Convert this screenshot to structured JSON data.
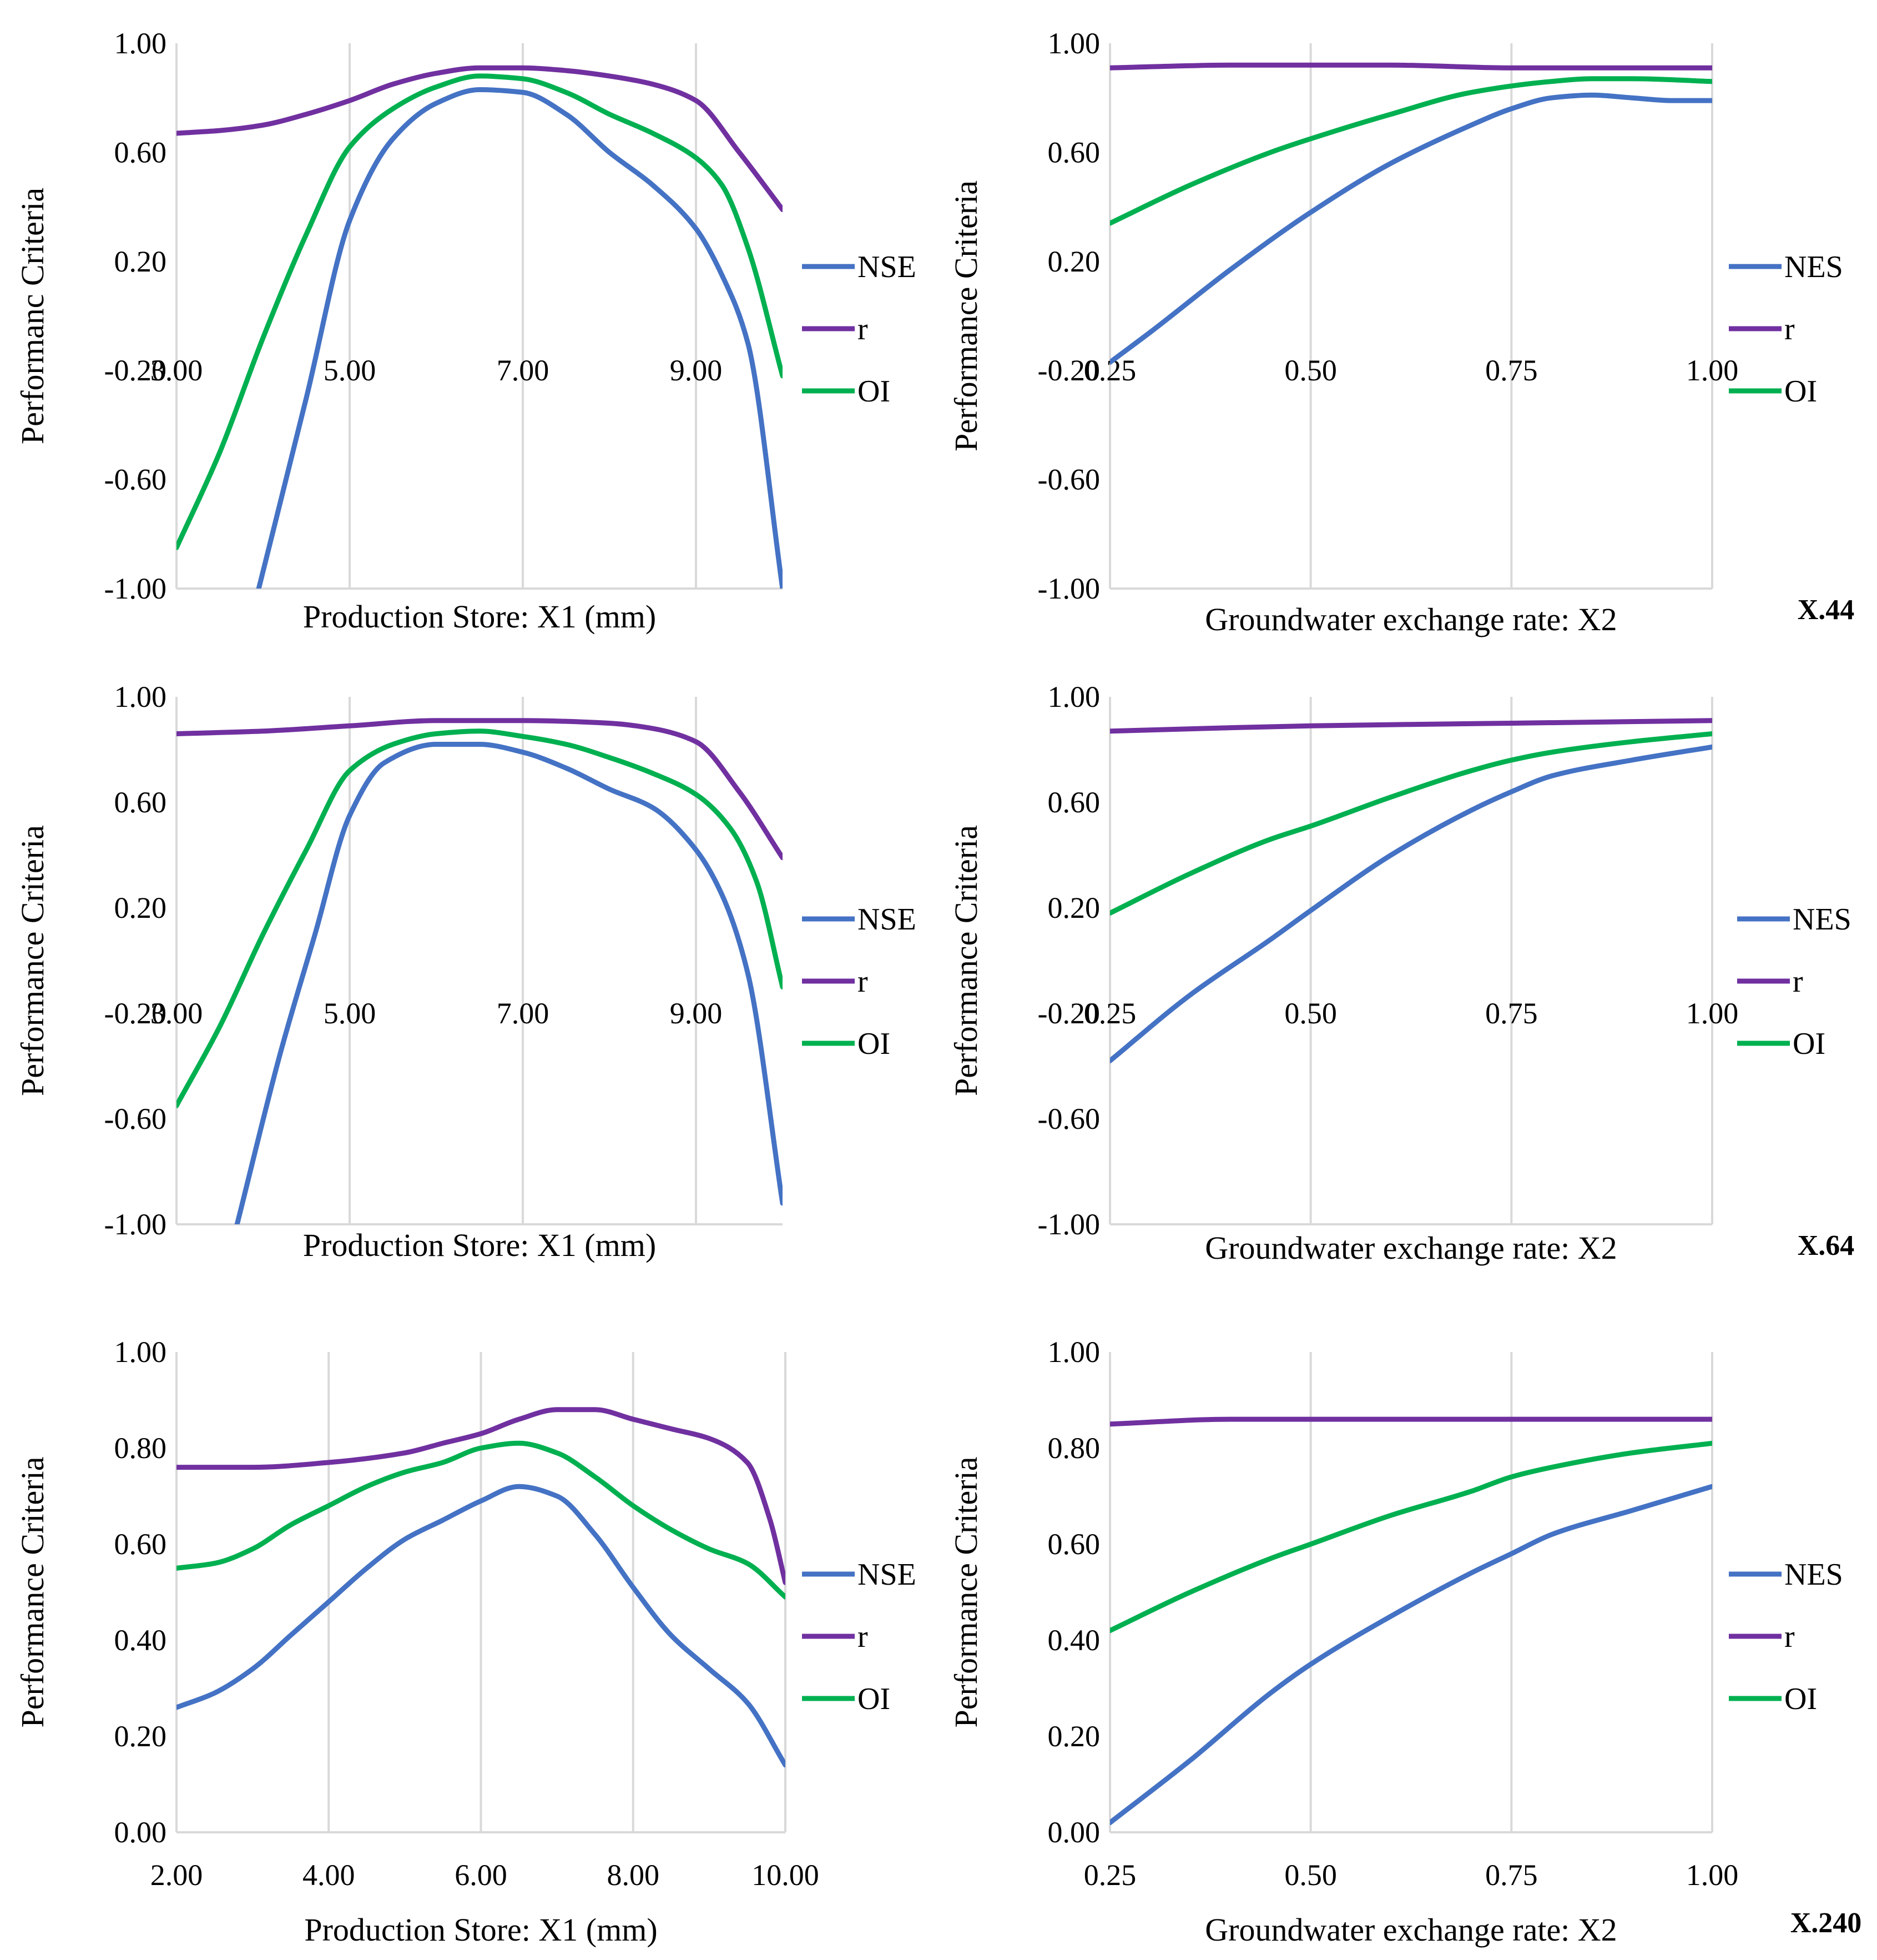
{
  "colors": {
    "NSE": "#4472C4",
    "r": "#7030A0",
    "OI": "#00B050",
    "grid": "#D9D9D9"
  },
  "chart_data": [
    {
      "id": "row1-left",
      "type": "line",
      "xlabel": "Production Store: X1 (mm)",
      "ylabel": "Performanc Criteria",
      "xlim": [
        3,
        10
      ],
      "ylim": [
        -1,
        1
      ],
      "xticks": [
        3,
        5,
        7,
        9
      ],
      "xtick_labels": [
        "3.00",
        "5.00",
        "7.00",
        "9.00"
      ],
      "yticks": [
        1,
        0.6,
        0.2,
        -0.2,
        -0.6,
        -1
      ],
      "ytick_labels": [
        "1.00",
        "0.60",
        "0.20",
        "-0.20",
        "-0.60",
        "-1.00"
      ],
      "xtick_at_y": -0.2,
      "grid": "x",
      "series": [
        {
          "name": "NSE",
          "x": [
            3.95,
            4.5,
            5.0,
            5.5,
            6.0,
            6.5,
            7.0,
            7.5,
            8.0,
            8.5,
            9.0,
            9.3,
            9.6,
            10.0
          ],
          "y": [
            -1.0,
            -0.3,
            0.35,
            0.65,
            0.78,
            0.83,
            0.82,
            0.74,
            0.6,
            0.48,
            0.32,
            0.15,
            -0.1,
            -1.0
          ]
        },
        {
          "name": "r",
          "x": [
            3,
            3.5,
            4,
            4.5,
            5,
            5.5,
            6,
            6.5,
            7,
            7.5,
            8,
            8.5,
            9,
            9.5,
            10
          ],
          "y": [
            0.67,
            0.68,
            0.7,
            0.74,
            0.79,
            0.85,
            0.89,
            0.91,
            0.91,
            0.9,
            0.88,
            0.85,
            0.79,
            0.6,
            0.39
          ]
        },
        {
          "name": "OI",
          "x": [
            3,
            3.5,
            4,
            4.5,
            5,
            5.5,
            6,
            6.5,
            7,
            7.5,
            8,
            8.5,
            9,
            9.3,
            9.6,
            10
          ],
          "y": [
            -0.85,
            -0.5,
            -0.08,
            0.3,
            0.62,
            0.76,
            0.84,
            0.88,
            0.87,
            0.82,
            0.74,
            0.67,
            0.58,
            0.48,
            0.25,
            -0.22
          ]
        }
      ],
      "legend": [
        "NSE",
        "r",
        "OI"
      ],
      "legend_placement": "right"
    },
    {
      "id": "row1-right",
      "type": "line",
      "xlabel": "Groundwater exchange rate: X2",
      "ylabel": "Performance Criteria",
      "xlim": [
        0.25,
        1.0
      ],
      "ylim": [
        -1,
        1
      ],
      "xticks": [
        0.25,
        0.5,
        0.75,
        1.0
      ],
      "xtick_labels": [
        "0.25",
        "0.50",
        "0.75",
        "1.00"
      ],
      "yticks": [
        1,
        0.6,
        0.2,
        -0.2,
        -0.6,
        -1
      ],
      "ytick_labels": [
        "1.00",
        "0.60",
        "0.20",
        "-0.20",
        "-0.60",
        "-1.00"
      ],
      "xtick_at_y": -0.2,
      "grid": "x",
      "series": [
        {
          "name": "NES",
          "x": [
            0.25,
            0.3,
            0.4,
            0.5,
            0.6,
            0.7,
            0.75,
            0.8,
            0.85,
            0.9,
            0.95,
            1.0
          ],
          "y": [
            -0.17,
            -0.06,
            0.17,
            0.38,
            0.56,
            0.7,
            0.76,
            0.8,
            0.81,
            0.8,
            0.79,
            0.79
          ]
        },
        {
          "name": "r",
          "x": [
            0.25,
            0.4,
            0.5,
            0.6,
            0.75,
            0.9,
            1.0
          ],
          "y": [
            0.91,
            0.92,
            0.92,
            0.92,
            0.91,
            0.91,
            0.91
          ]
        },
        {
          "name": "OI",
          "x": [
            0.25,
            0.35,
            0.45,
            0.5,
            0.6,
            0.7,
            0.8,
            0.85,
            0.9,
            1.0
          ],
          "y": [
            0.34,
            0.48,
            0.6,
            0.65,
            0.74,
            0.82,
            0.86,
            0.87,
            0.87,
            0.86
          ]
        }
      ],
      "legend": [
        "NES",
        "r",
        "OI"
      ],
      "legend_placement": "right",
      "tag": "X.44"
    },
    {
      "id": "row2-left",
      "type": "line",
      "xlabel": "Production Store: X1 (mm)",
      "ylabel": "Performance Criteria",
      "xlim": [
        3,
        10
      ],
      "ylim": [
        -1,
        1
      ],
      "xticks": [
        3,
        5,
        7,
        9
      ],
      "xtick_labels": [
        "3.00",
        "5.00",
        "7.00",
        "9.00"
      ],
      "yticks": [
        1,
        0.6,
        0.2,
        -0.2,
        -0.6,
        -1
      ],
      "ytick_labels": [
        "1.00",
        "0.60",
        "0.20",
        "-0.20",
        "-0.60",
        "-1.00"
      ],
      "xtick_at_y": -0.2,
      "grid": "x",
      "series": [
        {
          "name": "NSE",
          "x": [
            3.7,
            4.2,
            4.6,
            5.0,
            5.4,
            6.0,
            6.5,
            7.0,
            7.5,
            8.0,
            8.5,
            9.0,
            9.3,
            9.6,
            10.0
          ],
          "y": [
            -1.0,
            -0.35,
            0.1,
            0.55,
            0.75,
            0.82,
            0.82,
            0.79,
            0.73,
            0.65,
            0.58,
            0.42,
            0.25,
            -0.05,
            -0.92
          ]
        },
        {
          "name": "r",
          "x": [
            3,
            4,
            5,
            6,
            7,
            8,
            8.5,
            9,
            9.5,
            10
          ],
          "y": [
            0.86,
            0.87,
            0.89,
            0.91,
            0.91,
            0.9,
            0.88,
            0.83,
            0.64,
            0.39
          ]
        },
        {
          "name": "OI",
          "x": [
            3,
            3.5,
            4,
            4.5,
            5,
            5.5,
            6,
            6.5,
            7,
            7.5,
            8,
            8.5,
            9,
            9.4,
            9.7,
            10
          ],
          "y": [
            -0.55,
            -0.25,
            0.1,
            0.42,
            0.72,
            0.82,
            0.86,
            0.87,
            0.85,
            0.82,
            0.77,
            0.71,
            0.63,
            0.5,
            0.3,
            -0.1
          ]
        }
      ],
      "legend": [
        "NSE",
        "r",
        "OI"
      ],
      "legend_placement": "right"
    },
    {
      "id": "row2-right",
      "type": "line",
      "xlabel": "Groundwater exchange rate: X2",
      "ylabel": "Performance Criteria",
      "xlim": [
        0.25,
        1.0
      ],
      "ylim": [
        -1,
        1
      ],
      "xticks": [
        0.25,
        0.5,
        0.75,
        1.0
      ],
      "xtick_labels": [
        "0.25",
        "0.50",
        "0.75",
        "1.00"
      ],
      "yticks": [
        1,
        0.6,
        0.2,
        -0.2,
        -0.6,
        -1
      ],
      "ytick_labels": [
        "1.00",
        "0.60",
        "0.20",
        "-0.20",
        "-0.60",
        "-1.00"
      ],
      "xtick_at_y": -0.2,
      "grid": "x",
      "series": [
        {
          "name": "NES",
          "x": [
            0.25,
            0.35,
            0.45,
            0.5,
            0.6,
            0.7,
            0.75,
            0.8,
            0.9,
            1.0
          ],
          "y": [
            -0.38,
            -0.13,
            0.08,
            0.19,
            0.4,
            0.57,
            0.64,
            0.7,
            0.76,
            0.81
          ]
        },
        {
          "name": "r",
          "x": [
            0.25,
            0.5,
            0.75,
            1.0
          ],
          "y": [
            0.87,
            0.89,
            0.9,
            0.91
          ]
        },
        {
          "name": "OI",
          "x": [
            0.25,
            0.35,
            0.45,
            0.5,
            0.6,
            0.7,
            0.75,
            0.8,
            0.9,
            1.0
          ],
          "y": [
            0.18,
            0.33,
            0.46,
            0.51,
            0.62,
            0.72,
            0.76,
            0.79,
            0.83,
            0.86
          ]
        }
      ],
      "legend": [
        "NES",
        "r",
        "OI"
      ],
      "legend_placement": "right",
      "tag": "X.64"
    },
    {
      "id": "row3-left",
      "type": "line",
      "xlabel": "Production Store: X1 (mm)",
      "ylabel": "Performance Criteria",
      "xlim": [
        2,
        10
      ],
      "ylim": [
        0,
        1
      ],
      "xticks": [
        2,
        4,
        6,
        8,
        10
      ],
      "xtick_labels": [
        "2.00",
        "4.00",
        "6.00",
        "8.00",
        "10.00"
      ],
      "yticks": [
        1,
        0.8,
        0.6,
        0.4,
        0.2,
        0
      ],
      "ytick_labels": [
        "1.00",
        "0.80",
        "0.60",
        "0.40",
        "0.20",
        "0.00"
      ],
      "xtick_at_y": 0,
      "grid": "x",
      "series": [
        {
          "name": "NSE",
          "x": [
            2,
            2.5,
            3,
            3.5,
            4,
            4.5,
            5,
            5.5,
            6,
            6.5,
            7,
            7.5,
            8,
            8.5,
            9,
            9.5,
            10
          ],
          "y": [
            0.26,
            0.29,
            0.34,
            0.41,
            0.48,
            0.55,
            0.61,
            0.65,
            0.69,
            0.72,
            0.7,
            0.62,
            0.51,
            0.41,
            0.34,
            0.27,
            0.14
          ]
        },
        {
          "name": "r",
          "x": [
            2,
            3,
            4,
            5,
            5.5,
            6,
            6.5,
            7,
            7.5,
            8,
            8.5,
            9,
            9.5,
            9.8,
            10
          ],
          "y": [
            0.76,
            0.76,
            0.77,
            0.79,
            0.81,
            0.83,
            0.86,
            0.88,
            0.88,
            0.86,
            0.84,
            0.82,
            0.77,
            0.65,
            0.52
          ]
        },
        {
          "name": "OI",
          "x": [
            2,
            2.5,
            3,
            3.5,
            4,
            4.5,
            5,
            5.5,
            6,
            6.5,
            7,
            7.5,
            8,
            8.5,
            9,
            9.5,
            10
          ],
          "y": [
            0.55,
            0.56,
            0.59,
            0.64,
            0.68,
            0.72,
            0.75,
            0.77,
            0.8,
            0.81,
            0.79,
            0.74,
            0.68,
            0.63,
            0.59,
            0.56,
            0.49
          ]
        }
      ],
      "legend": [
        "NSE",
        "r",
        "OI"
      ],
      "legend_placement": "right"
    },
    {
      "id": "row3-right",
      "type": "line",
      "xlabel": "Groundwater exchange rate: X2",
      "ylabel": "Performance Criteria",
      "xlim": [
        0.25,
        1.0
      ],
      "ylim": [
        0,
        1
      ],
      "xticks": [
        0.25,
        0.5,
        0.75,
        1.0
      ],
      "xtick_labels": [
        "0.25",
        "0.50",
        "0.75",
        "1.00"
      ],
      "yticks": [
        1,
        0.8,
        0.6,
        0.4,
        0.2,
        0
      ],
      "ytick_labels": [
        "1.00",
        "0.80",
        "0.60",
        "0.40",
        "0.20",
        "0.00"
      ],
      "xtick_at_y": 0,
      "grid": "x",
      "series": [
        {
          "name": "NES",
          "x": [
            0.25,
            0.35,
            0.45,
            0.5,
            0.6,
            0.7,
            0.75,
            0.8,
            0.9,
            1.0
          ],
          "y": [
            0.02,
            0.15,
            0.29,
            0.35,
            0.45,
            0.54,
            0.58,
            0.62,
            0.67,
            0.72
          ]
        },
        {
          "name": "r",
          "x": [
            0.25,
            0.4,
            0.5,
            0.6,
            0.75,
            0.9,
            1.0
          ],
          "y": [
            0.85,
            0.86,
            0.86,
            0.86,
            0.86,
            0.86,
            0.86
          ]
        },
        {
          "name": "OI",
          "x": [
            0.25,
            0.35,
            0.45,
            0.5,
            0.6,
            0.7,
            0.75,
            0.8,
            0.9,
            1.0
          ],
          "y": [
            0.42,
            0.5,
            0.57,
            0.6,
            0.66,
            0.71,
            0.74,
            0.76,
            0.79,
            0.81
          ]
        }
      ],
      "legend": [
        "NES",
        "r",
        "OI"
      ],
      "legend_placement": "right",
      "tag": "X.240"
    }
  ]
}
